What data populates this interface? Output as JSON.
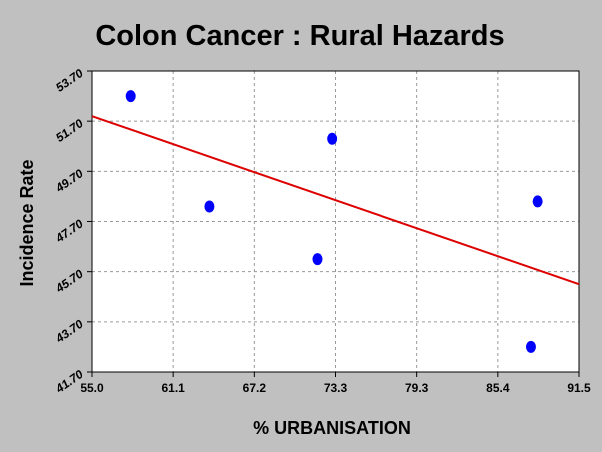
{
  "chart_data": {
    "type": "scatter",
    "title": "Colon Cancer : Rural Hazards",
    "xlabel": "% URBANISATION",
    "ylabel": "Incidence Rate",
    "xlim": [
      55.0,
      91.5
    ],
    "ylim": [
      41.7,
      53.7
    ],
    "xticks": [
      "55.0",
      "61.1",
      "67.2",
      "73.3",
      "79.3",
      "85.4",
      "91.5"
    ],
    "yticks": [
      "41.70",
      "43.70",
      "45.70",
      "47.70",
      "49.70",
      "51.70",
      "53.70"
    ],
    "grid": true,
    "background": "#c0c0c0",
    "plot_background": "#ffffff",
    "point_color": "#0000ff",
    "line_color": "#dd0000",
    "series": [
      {
        "type": "scatter",
        "x": [
          57.9,
          63.8,
          71.9,
          73.0,
          87.9,
          88.4
        ],
        "y": [
          52.7,
          48.3,
          46.2,
          51.0,
          42.7,
          48.5
        ]
      },
      {
        "type": "line",
        "x": [
          55.0,
          91.5
        ],
        "y": [
          51.9,
          45.2
        ]
      }
    ]
  }
}
